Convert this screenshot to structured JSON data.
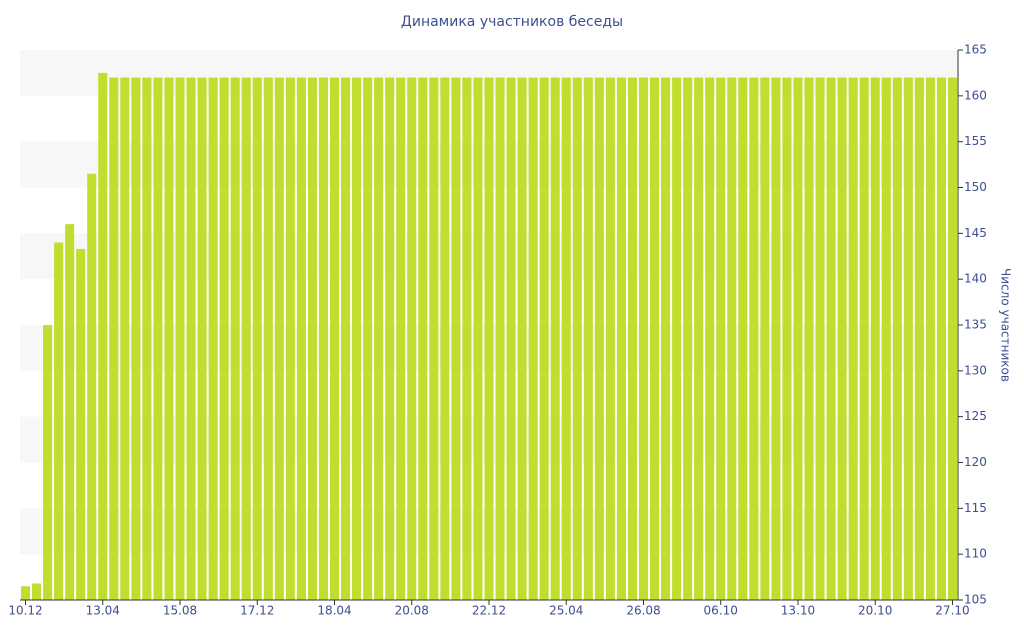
{
  "chart_data": {
    "type": "bar",
    "title": "Динамика участников беседы",
    "y_label": "Число участников",
    "categories": [
      "10.12",
      null,
      null,
      null,
      null,
      null,
      null,
      "13.04",
      null,
      null,
      null,
      null,
      null,
      null,
      "15.08",
      null,
      null,
      null,
      null,
      null,
      null,
      "17.12",
      null,
      null,
      null,
      null,
      null,
      null,
      "18.04",
      null,
      null,
      null,
      null,
      null,
      null,
      "20.08",
      null,
      null,
      null,
      null,
      null,
      null,
      "22.12",
      null,
      null,
      null,
      null,
      null,
      null,
      "25.04",
      null,
      null,
      null,
      null,
      null,
      null,
      "26.08",
      null,
      null,
      null,
      null,
      null,
      null,
      "06.10",
      null,
      null,
      null,
      null,
      null,
      null,
      "13.10",
      null,
      null,
      null,
      null,
      null,
      null,
      "20.10",
      null,
      null,
      null,
      null,
      null,
      null,
      "27.10"
    ],
    "values": [
      106.5,
      106.8,
      135,
      144,
      146,
      143.3,
      151.5,
      162.5,
      162,
      162,
      162,
      162,
      162,
      162,
      162,
      162,
      162,
      162,
      162,
      162,
      162,
      162,
      162,
      162,
      162,
      162,
      162,
      162,
      162,
      162,
      162,
      162,
      162,
      162,
      162,
      162,
      162,
      162,
      162,
      162,
      162,
      162,
      162,
      162,
      162,
      162,
      162,
      162,
      162,
      162,
      162,
      162,
      162,
      162,
      162,
      162,
      162,
      162,
      162,
      162,
      162,
      162,
      162,
      162,
      162,
      162,
      162,
      162,
      162,
      162,
      162,
      162,
      162,
      162,
      162,
      162,
      162,
      162,
      162,
      162,
      162,
      162,
      162,
      162,
      162
    ],
    "color": "#c0de2e",
    "ylim": [
      105,
      165
    ],
    "yticks": [
      105,
      110,
      115,
      120,
      125,
      130,
      135,
      140,
      145,
      150,
      155,
      160,
      165
    ],
    "grid_bands": true,
    "y_axis_side": "right"
  }
}
